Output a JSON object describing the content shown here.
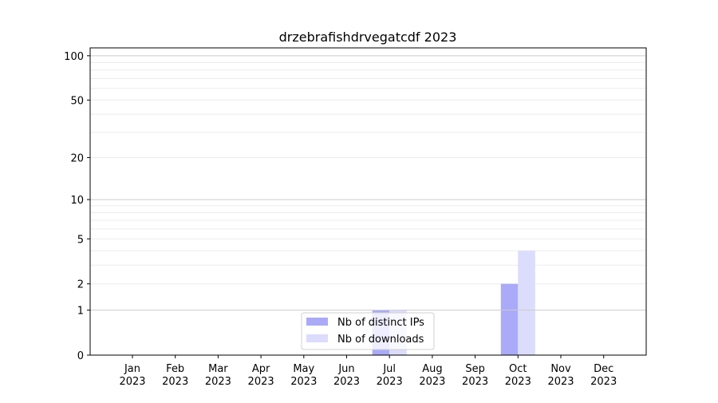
{
  "chart_data": {
    "type": "bar",
    "title": "drzebrafishdrvegatcdf 2023",
    "xlabel": "",
    "ylabel": "",
    "yscale": "log(1+y)",
    "ylim": [
      0,
      113
    ],
    "yticks": [
      0,
      1,
      2,
      5,
      10,
      20,
      50,
      100
    ],
    "grid": true,
    "legend_position": "lower-center",
    "categories": [
      "Jan\n2023",
      "Feb\n2023",
      "Mar\n2023",
      "Apr\n2023",
      "May\n2023",
      "Jun\n2023",
      "Jul\n2023",
      "Aug\n2023",
      "Sep\n2023",
      "Oct\n2023",
      "Nov\n2023",
      "Dec\n2023"
    ],
    "series": [
      {
        "name": "Nb of distinct IPs",
        "color": "#aaaaf8",
        "values": [
          0,
          0,
          0,
          0,
          0,
          0,
          1,
          0,
          0,
          2,
          0,
          0
        ]
      },
      {
        "name": "Nb of downloads",
        "color": "#dcdcfc",
        "values": [
          0,
          0,
          0,
          0,
          0,
          0,
          1,
          0,
          0,
          4,
          0,
          0
        ]
      }
    ]
  }
}
